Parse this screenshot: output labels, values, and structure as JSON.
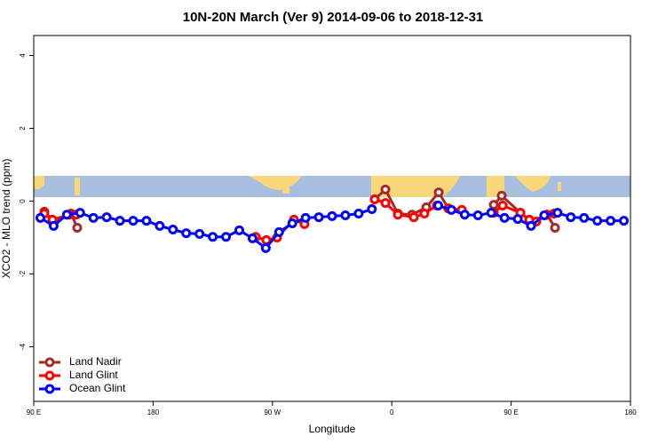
{
  "chart_data": {
    "type": "line",
    "title": "10N-20N March (Ver 9)   2014-09-06 to 2018-12-31",
    "xlabel": "Longitude",
    "ylabel": "XCO2 - MLO trend (ppm)",
    "xlim": [
      90,
      540
    ],
    "ylim": [
      -5.5,
      4.55
    ],
    "xticks": [
      {
        "value": 90,
        "label": "90 E"
      },
      {
        "value": 180,
        "label": "180"
      },
      {
        "value": 270,
        "label": "90 W"
      },
      {
        "value": 360,
        "label": "0"
      },
      {
        "value": 450,
        "label": "90 E"
      },
      {
        "value": 540,
        "label": "180"
      }
    ],
    "yticks": [
      4,
      2,
      0,
      -2,
      -4
    ],
    "legend": "bottom-left",
    "series": [
      {
        "name": "Land Nadir",
        "color": "#a52a2a",
        "x": [
          98,
          105.4,
          118.1,
          122.8,
          null,
          347.1,
          355.2,
          364.6,
          375.3,
          386,
          395.4,
          402.7,
          null,
          436.9,
          442.9,
          457,
          465,
          477.1,
          483.1
        ],
        "values": [
          -0.29,
          -0.56,
          -0.34,
          -0.73,
          null,
          0.05,
          0.32,
          -0.34,
          -0.37,
          -0.17,
          0.24,
          -0.2,
          null,
          -0.1,
          0.15,
          -0.32,
          -0.56,
          -0.37,
          -0.73
        ]
      },
      {
        "name": "Land Glint",
        "color": "#ff0000",
        "x": [
          98,
          104.1,
          116.8,
          122.1,
          null,
          257.4,
          265.4,
          273.5,
          286.2,
          294.2,
          null,
          347.1,
          355.2,
          364.6,
          376.6,
          384.6,
          394,
          402.7,
          412.8,
          null,
          436.9,
          443.6,
          457,
          463.7,
          469,
          477.1,
          482.4
        ],
        "values": [
          -0.34,
          -0.51,
          -0.37,
          -0.37,
          null,
          -0.98,
          -1.07,
          -1.0,
          -0.51,
          -0.63,
          null,
          0.05,
          -0.05,
          -0.37,
          -0.44,
          -0.34,
          -0.12,
          -0.2,
          -0.24,
          null,
          -0.32,
          -0.12,
          -0.32,
          -0.51,
          -0.56,
          -0.37,
          -0.34
        ]
      },
      {
        "name": "Ocean Glint",
        "color": "#0000ff",
        "x": [
          95,
          105,
          115,
          125,
          135,
          145,
          155,
          165,
          175,
          185,
          195,
          205,
          215,
          225,
          235,
          245,
          255,
          265,
          275,
          285,
          295,
          305,
          315,
          325,
          335,
          345,
          null,
          395,
          405,
          415,
          425,
          435,
          445,
          455,
          465,
          475,
          485,
          495,
          505,
          515,
          525,
          535
        ],
        "values": [
          -0.46,
          -0.68,
          -0.37,
          -0.32,
          -0.46,
          -0.44,
          -0.54,
          -0.54,
          -0.54,
          -0.68,
          -0.78,
          -0.88,
          -0.9,
          -0.98,
          -0.98,
          -0.8,
          -1.02,
          -1.29,
          -0.85,
          -0.61,
          -0.46,
          -0.44,
          -0.41,
          -0.39,
          -0.34,
          -0.22,
          null,
          -0.12,
          -0.24,
          -0.37,
          -0.39,
          -0.32,
          -0.46,
          -0.49,
          -0.68,
          -0.39,
          -0.32,
          -0.44,
          -0.46,
          -0.54,
          -0.54,
          -0.54
        ]
      }
    ]
  }
}
